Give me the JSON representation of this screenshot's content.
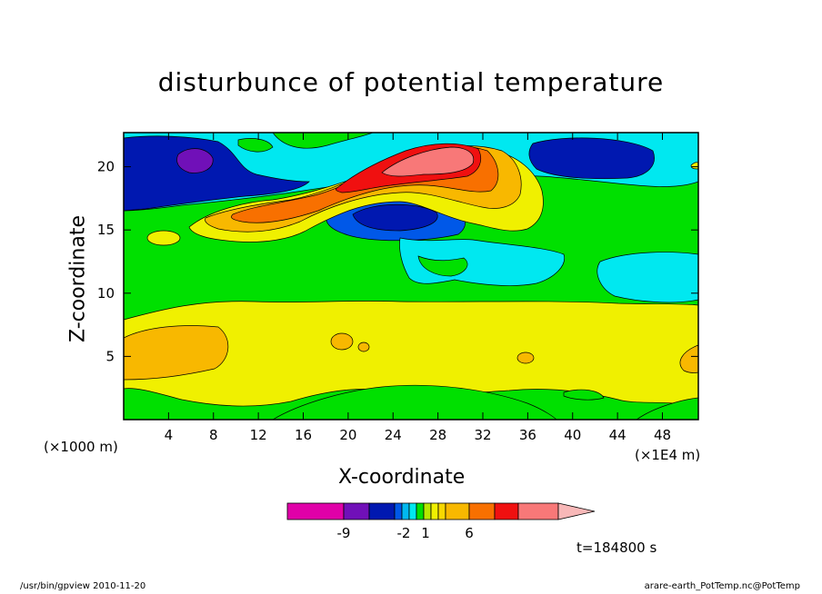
{
  "chart_data": {
    "type": "heatmap",
    "title": "disturbunce of potential temperature",
    "xlabel": "X-coordinate",
    "ylabel": "Z-coordinate",
    "x_unit_note": "(×1000 m)",
    "x_scale_note": "(×1E4 m)",
    "x_ticks": [
      "4",
      "8",
      "12",
      "16",
      "20",
      "24",
      "28",
      "32",
      "36",
      "40",
      "44",
      "48"
    ],
    "y_ticks": [
      "5",
      "10",
      "15",
      "20"
    ],
    "xlim": [
      0,
      51.2
    ],
    "ylim": [
      0,
      22.7
    ],
    "colorbar": {
      "labels": [
        "-9",
        "-2",
        "1",
        "6"
      ],
      "colors": [
        "#e000a8",
        "#7010b8",
        "#0018b0",
        "#0058e8",
        "#00b8f0",
        "#00e8f0",
        "#00e000",
        "#b8e800",
        "#f0f000",
        "#f8d800",
        "#f8b800",
        "#f87000",
        "#f01010",
        "#f87878",
        "#f8b8b8"
      ]
    },
    "time_label": "t=184800 s"
  },
  "footer": {
    "left": "/usr/bin/gpview   2010-11-20",
    "right": "arare-earth_PotTemp.nc@PotTemp"
  }
}
